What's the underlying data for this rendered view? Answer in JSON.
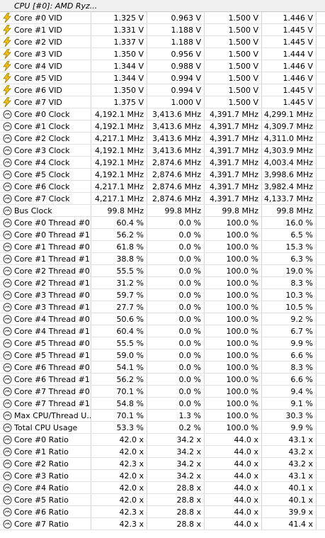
{
  "header": {
    "title": "CPU [#0]: AMD Ryz..."
  },
  "rows": [
    {
      "icon": "voltage-bolt-icon",
      "label": "Core #0 VID",
      "v": [
        "1.325 V",
        "0.963 V",
        "1.500 V",
        "1.446 V"
      ]
    },
    {
      "icon": "voltage-bolt-icon",
      "label": "Core #1 VID",
      "v": [
        "1.331 V",
        "1.188 V",
        "1.500 V",
        "1.445 V"
      ]
    },
    {
      "icon": "voltage-bolt-icon",
      "label": "Core #2 VID",
      "v": [
        "1.337 V",
        "1.188 V",
        "1.500 V",
        "1.445 V"
      ]
    },
    {
      "icon": "voltage-bolt-icon",
      "label": "Core #3 VID",
      "v": [
        "1.350 V",
        "0.956 V",
        "1.500 V",
        "1.444 V"
      ]
    },
    {
      "icon": "voltage-bolt-icon",
      "label": "Core #4 VID",
      "v": [
        "1.344 V",
        "0.988 V",
        "1.500 V",
        "1.446 V"
      ]
    },
    {
      "icon": "voltage-bolt-icon",
      "label": "Core #5 VID",
      "v": [
        "1.344 V",
        "0.994 V",
        "1.500 V",
        "1.446 V"
      ]
    },
    {
      "icon": "voltage-bolt-icon",
      "label": "Core #6 VID",
      "v": [
        "1.350 V",
        "0.994 V",
        "1.500 V",
        "1.445 V"
      ]
    },
    {
      "icon": "voltage-bolt-icon",
      "label": "Core #7 VID",
      "v": [
        "1.375 V",
        "1.000 V",
        "1.500 V",
        "1.445 V"
      ]
    },
    {
      "icon": "gauge-icon",
      "label": "Core #0 Clock",
      "v": [
        "4,192.1 MHz",
        "3,413.6 MHz",
        "4,391.7 MHz",
        "4,299.1 MHz"
      ]
    },
    {
      "icon": "gauge-icon",
      "label": "Core #1 Clock",
      "v": [
        "4,192.1 MHz",
        "3,413.6 MHz",
        "4,391.7 MHz",
        "4,309.7 MHz"
      ]
    },
    {
      "icon": "gauge-icon",
      "label": "Core #2 Clock",
      "v": [
        "4,217.1 MHz",
        "3,413.6 MHz",
        "4,391.7 MHz",
        "4,311.0 MHz"
      ]
    },
    {
      "icon": "gauge-icon",
      "label": "Core #3 Clock",
      "v": [
        "4,192.1 MHz",
        "3,413.6 MHz",
        "4,391.7 MHz",
        "4,303.9 MHz"
      ]
    },
    {
      "icon": "gauge-icon",
      "label": "Core #4 Clock",
      "v": [
        "4,192.1 MHz",
        "2,874.6 MHz",
        "4,391.7 MHz",
        "4,003.4 MHz"
      ]
    },
    {
      "icon": "gauge-icon",
      "label": "Core #5 Clock",
      "v": [
        "4,192.1 MHz",
        "2,874.6 MHz",
        "4,391.7 MHz",
        "3,998.6 MHz"
      ]
    },
    {
      "icon": "gauge-icon",
      "label": "Core #6 Clock",
      "v": [
        "4,217.1 MHz",
        "2,874.6 MHz",
        "4,391.7 MHz",
        "3,982.4 MHz"
      ]
    },
    {
      "icon": "gauge-icon",
      "label": "Core #7 Clock",
      "v": [
        "4,217.1 MHz",
        "2,874.6 MHz",
        "4,391.7 MHz",
        "4,133.7 MHz"
      ]
    },
    {
      "icon": "gauge-icon",
      "label": "Bus Clock",
      "v": [
        "99.8 MHz",
        "99.8 MHz",
        "99.8 MHz",
        "99.8 MHz"
      ]
    },
    {
      "icon": "gauge-icon",
      "label": "Core #0 Thread #0...",
      "v": [
        "60.4 %",
        "0.0 %",
        "100.0 %",
        "16.0 %"
      ]
    },
    {
      "icon": "gauge-icon",
      "label": "Core #0 Thread #1...",
      "v": [
        "56.2 %",
        "0.0 %",
        "100.0 %",
        "6.5 %"
      ]
    },
    {
      "icon": "gauge-icon",
      "label": "Core #1 Thread #0...",
      "v": [
        "61.8 %",
        "0.0 %",
        "100.0 %",
        "15.3 %"
      ]
    },
    {
      "icon": "gauge-icon",
      "label": "Core #1 Thread #1...",
      "v": [
        "38.8 %",
        "0.0 %",
        "100.0 %",
        "6.3 %"
      ]
    },
    {
      "icon": "gauge-icon",
      "label": "Core #2 Thread #0...",
      "v": [
        "55.5 %",
        "0.0 %",
        "100.0 %",
        "19.0 %"
      ]
    },
    {
      "icon": "gauge-icon",
      "label": "Core #2 Thread #1...",
      "v": [
        "31.2 %",
        "0.0 %",
        "100.0 %",
        "8.3 %"
      ]
    },
    {
      "icon": "gauge-icon",
      "label": "Core #3 Thread #0...",
      "v": [
        "59.7 %",
        "0.0 %",
        "100.0 %",
        "10.3 %"
      ]
    },
    {
      "icon": "gauge-icon",
      "label": "Core #3 Thread #1...",
      "v": [
        "27.7 %",
        "0.0 %",
        "100.0 %",
        "10.5 %"
      ]
    },
    {
      "icon": "gauge-icon",
      "label": "Core #4 Thread #0...",
      "v": [
        "50.6 %",
        "0.0 %",
        "100.0 %",
        "9.2 %"
      ]
    },
    {
      "icon": "gauge-icon",
      "label": "Core #4 Thread #1...",
      "v": [
        "60.4 %",
        "0.0 %",
        "100.0 %",
        "6.7 %"
      ]
    },
    {
      "icon": "gauge-icon",
      "label": "Core #5 Thread #0...",
      "v": [
        "55.5 %",
        "0.0 %",
        "100.0 %",
        "9.9 %"
      ]
    },
    {
      "icon": "gauge-icon",
      "label": "Core #5 Thread #1...",
      "v": [
        "59.0 %",
        "0.0 %",
        "100.0 %",
        "6.6 %"
      ]
    },
    {
      "icon": "gauge-icon",
      "label": "Core #6 Thread #0...",
      "v": [
        "54.1 %",
        "0.0 %",
        "100.0 %",
        "8.3 %"
      ]
    },
    {
      "icon": "gauge-icon",
      "label": "Core #6 Thread #1...",
      "v": [
        "56.2 %",
        "0.0 %",
        "100.0 %",
        "6.6 %"
      ]
    },
    {
      "icon": "gauge-icon",
      "label": "Core #7 Thread #0...",
      "v": [
        "70.1 %",
        "0.0 %",
        "100.0 %",
        "9.4 %"
      ]
    },
    {
      "icon": "gauge-icon",
      "label": "Core #7 Thread #1...",
      "v": [
        "54.8 %",
        "0.0 %",
        "100.0 %",
        "9.1 %"
      ]
    },
    {
      "icon": "gauge-icon",
      "label": "Max CPU/Thread U...",
      "v": [
        "70.1 %",
        "1.3 %",
        "100.0 %",
        "30.3 %"
      ]
    },
    {
      "icon": "gauge-icon",
      "label": "Total CPU Usage",
      "v": [
        "53.3 %",
        "0.2 %",
        "100.0 %",
        "9.9 %"
      ]
    },
    {
      "icon": "gauge-icon",
      "label": "Core #0 Ratio",
      "v": [
        "42.0 x",
        "34.2 x",
        "44.0 x",
        "43.1 x"
      ]
    },
    {
      "icon": "gauge-icon",
      "label": "Core #1 Ratio",
      "v": [
        "42.0 x",
        "34.2 x",
        "44.0 x",
        "43.2 x"
      ]
    },
    {
      "icon": "gauge-icon",
      "label": "Core #2 Ratio",
      "v": [
        "42.3 x",
        "34.2 x",
        "44.0 x",
        "43.2 x"
      ]
    },
    {
      "icon": "gauge-icon",
      "label": "Core #3 Ratio",
      "v": [
        "42.0 x",
        "34.2 x",
        "44.0 x",
        "43.1 x"
      ]
    },
    {
      "icon": "gauge-icon",
      "label": "Core #4 Ratio",
      "v": [
        "42.0 x",
        "28.8 x",
        "44.0 x",
        "40.1 x"
      ]
    },
    {
      "icon": "gauge-icon",
      "label": "Core #5 Ratio",
      "v": [
        "42.0 x",
        "28.8 x",
        "44.0 x",
        "40.1 x"
      ]
    },
    {
      "icon": "gauge-icon",
      "label": "Core #6 Ratio",
      "v": [
        "42.3 x",
        "28.8 x",
        "44.0 x",
        "39.9 x"
      ]
    },
    {
      "icon": "gauge-icon",
      "label": "Core #7 Ratio",
      "v": [
        "42.3 x",
        "28.8 x",
        "44.0 x",
        "41.4 x"
      ]
    }
  ],
  "colors": {
    "bolt_fill": "#f5c400",
    "bolt_stroke": "#a07a00",
    "gauge_stroke": "#555555",
    "header_bg": "#f0f0f0"
  }
}
